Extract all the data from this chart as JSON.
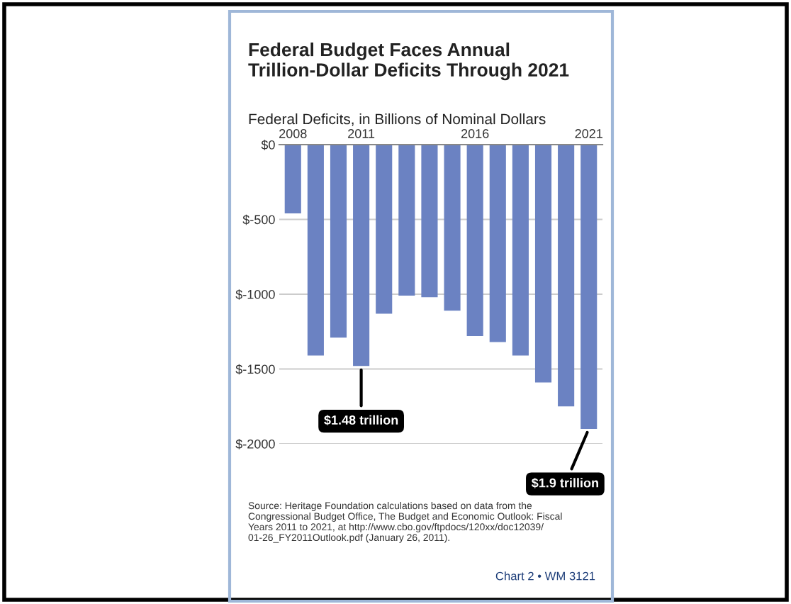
{
  "chart_data": {
    "type": "bar",
    "title": "Federal Budget Faces Annual\nTrillion-Dollar Deficits Through 2021",
    "subtitle": "Federal Deficits, in Billions of Nominal Dollars",
    "categories": [
      "2008",
      null,
      null,
      "2011",
      null,
      null,
      null,
      null,
      "2016",
      null,
      null,
      null,
      null,
      "2021"
    ],
    "values": [
      -460,
      -1410,
      -1290,
      -1480,
      -1130,
      -1010,
      -1020,
      -1110,
      -1280,
      -1320,
      -1410,
      -1590,
      -1750,
      -1900
    ],
    "color": "#6b82c2",
    "ylim": [
      -2000,
      0
    ],
    "yticks": [
      {
        "value": 0,
        "label": "$0"
      },
      {
        "value": -500,
        "label": "$-500"
      },
      {
        "value": -1000,
        "label": "$-1000"
      },
      {
        "value": -1500,
        "label": "$-1500"
      },
      {
        "value": -2000,
        "label": "$-2000"
      }
    ],
    "grid": "y",
    "annotations": [
      {
        "text": "$1.48 trillion",
        "x": "2011",
        "y": -1480
      },
      {
        "text": "$1.9 trillion",
        "x": "2021",
        "y": -1900
      },
      "Source: Heritage Foundation calculations based on data from the\nCongressional Budget Office, The Budget and Economic Outlook: Fiscal\nYears 2011 to 2021, at http://www.cbo.gov/ftpdocs/120xx/doc12039/\n01-26_FY2011Outlook.pdf (January 26, 2011).",
      "Chart 2 • WM 3121"
    ]
  }
}
